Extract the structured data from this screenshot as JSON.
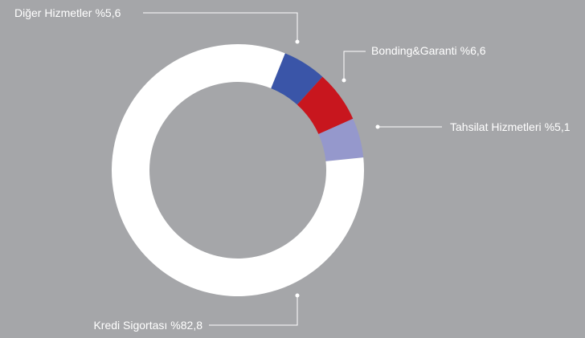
{
  "chart_data": {
    "type": "donut",
    "categories": [
      "Diğer Hizmetler",
      "Bonding&Garanti",
      "Tahsilat Hizmetleri",
      "Kredi Sigortası"
    ],
    "values": [
      5.6,
      6.6,
      5.1,
      82.8
    ],
    "value_labels": [
      "%5,6",
      "%6,6",
      "%5,1",
      "%82,8"
    ],
    "colors": [
      "#3a55a8",
      "#c8161e",
      "#9598cc",
      "#ffffff"
    ]
  }
}
